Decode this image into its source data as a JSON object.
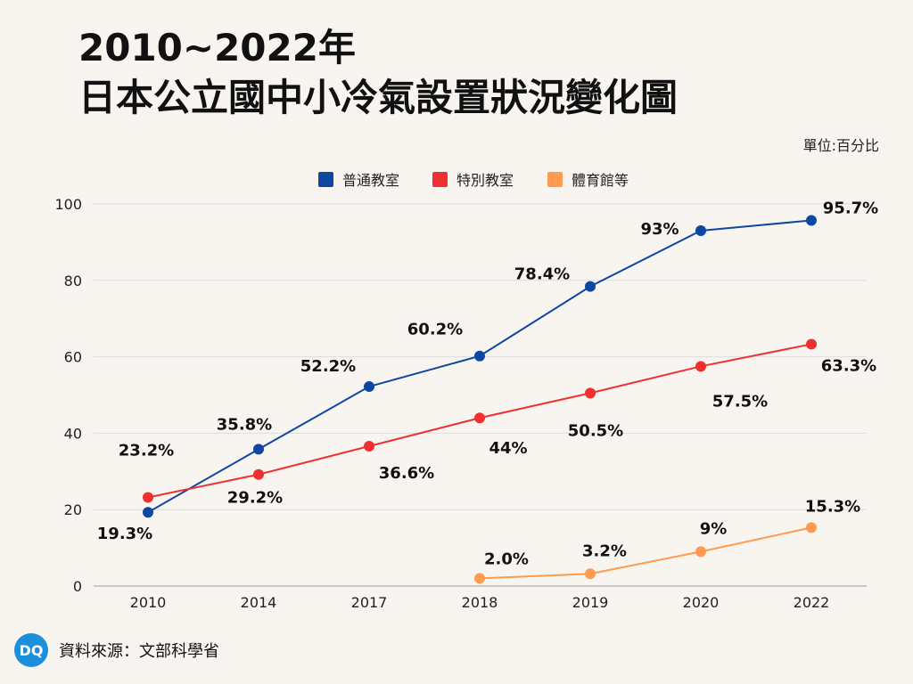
{
  "title_line1": "2010~2022年",
  "title_line2": "日本公立國中小冷氣設置狀況變化圖",
  "unit_label": "單位:百分比",
  "source_text": "資料來源：文部科學省",
  "logo_text": "DQ",
  "colors": {
    "blue": "#0d47a1",
    "red": "#f03030",
    "orange": "#ff9a50",
    "grid": "#dcdcdc",
    "logo": "#1b8fd9"
  },
  "chart_data": {
    "type": "line",
    "title": "2010~2022年 日本公立國中小冷氣設置狀況變化圖",
    "xlabel": "",
    "ylabel": "",
    "ylim": [
      0,
      100
    ],
    "yticks": [
      "0",
      "20",
      "40",
      "60",
      "80",
      "100"
    ],
    "categories": [
      "2010",
      "2014",
      "2017",
      "2018",
      "2019",
      "2020",
      "2022"
    ],
    "grid": true,
    "legend_position": "top",
    "series": [
      {
        "name": "普通教室",
        "color_key": "blue",
        "values": [
          19.3,
          35.8,
          52.2,
          60.2,
          78.4,
          93,
          95.7
        ],
        "labels": [
          "19.3%",
          "35.8%",
          "52.2%",
          "60.2%",
          "78.4%",
          "93%",
          "95.7%"
        ]
      },
      {
        "name": "特別教室",
        "color_key": "red",
        "values": [
          23.2,
          29.2,
          36.6,
          44,
          50.5,
          57.5,
          63.3
        ],
        "labels": [
          "23.2%",
          "29.2%",
          "36.6%",
          "44%",
          "50.5%",
          "57.5%",
          "63.3%"
        ]
      },
      {
        "name": "體育館等",
        "color_key": "orange",
        "values": [
          null,
          null,
          null,
          2.0,
          3.2,
          9,
          15.3
        ],
        "labels": [
          "",
          "",
          "",
          "2.0%",
          "3.2%",
          "9%",
          "15.3%"
        ]
      }
    ]
  }
}
